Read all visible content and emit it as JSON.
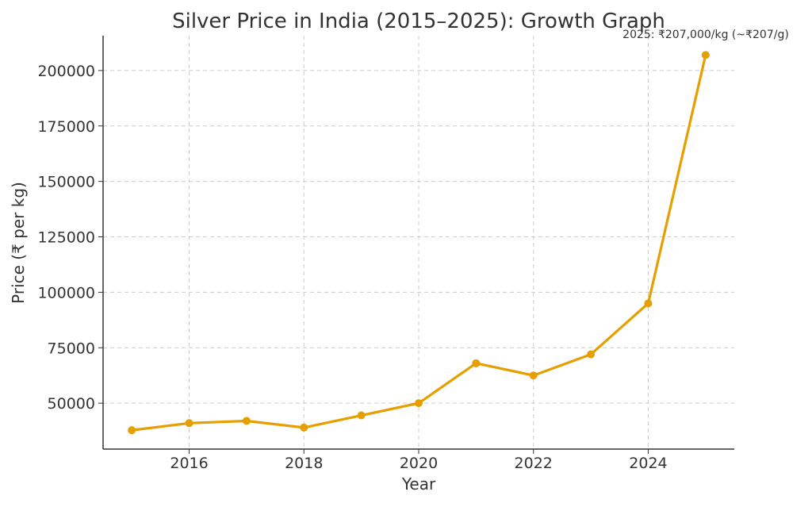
{
  "chart_data": {
    "type": "line",
    "title": "Silver Price in India (2015–2025): Growth Graph",
    "xlabel": "Year",
    "ylabel": "Price (₹ per kg)",
    "x": [
      2015,
      2016,
      2017,
      2018,
      2019,
      2020,
      2021,
      2022,
      2023,
      2024,
      2025
    ],
    "series": [
      {
        "values": [
          37800,
          41000,
          42000,
          39000,
          44500,
          50000,
          68000,
          62500,
          72000,
          95000,
          207000
        ],
        "color": "#E69F00"
      }
    ],
    "xlim": [
      2014.5,
      2025.5
    ],
    "ylim": [
      29300,
      215700
    ],
    "xticks": [
      2016,
      2018,
      2020,
      2022,
      2024
    ],
    "yticks": [
      50000,
      75000,
      100000,
      125000,
      150000,
      175000,
      200000
    ],
    "grid": true,
    "marker": "circle",
    "annotation": {
      "text": "2025: ₹207,000/kg (~₹207/g)",
      "x": 2025,
      "y": 207000
    }
  }
}
